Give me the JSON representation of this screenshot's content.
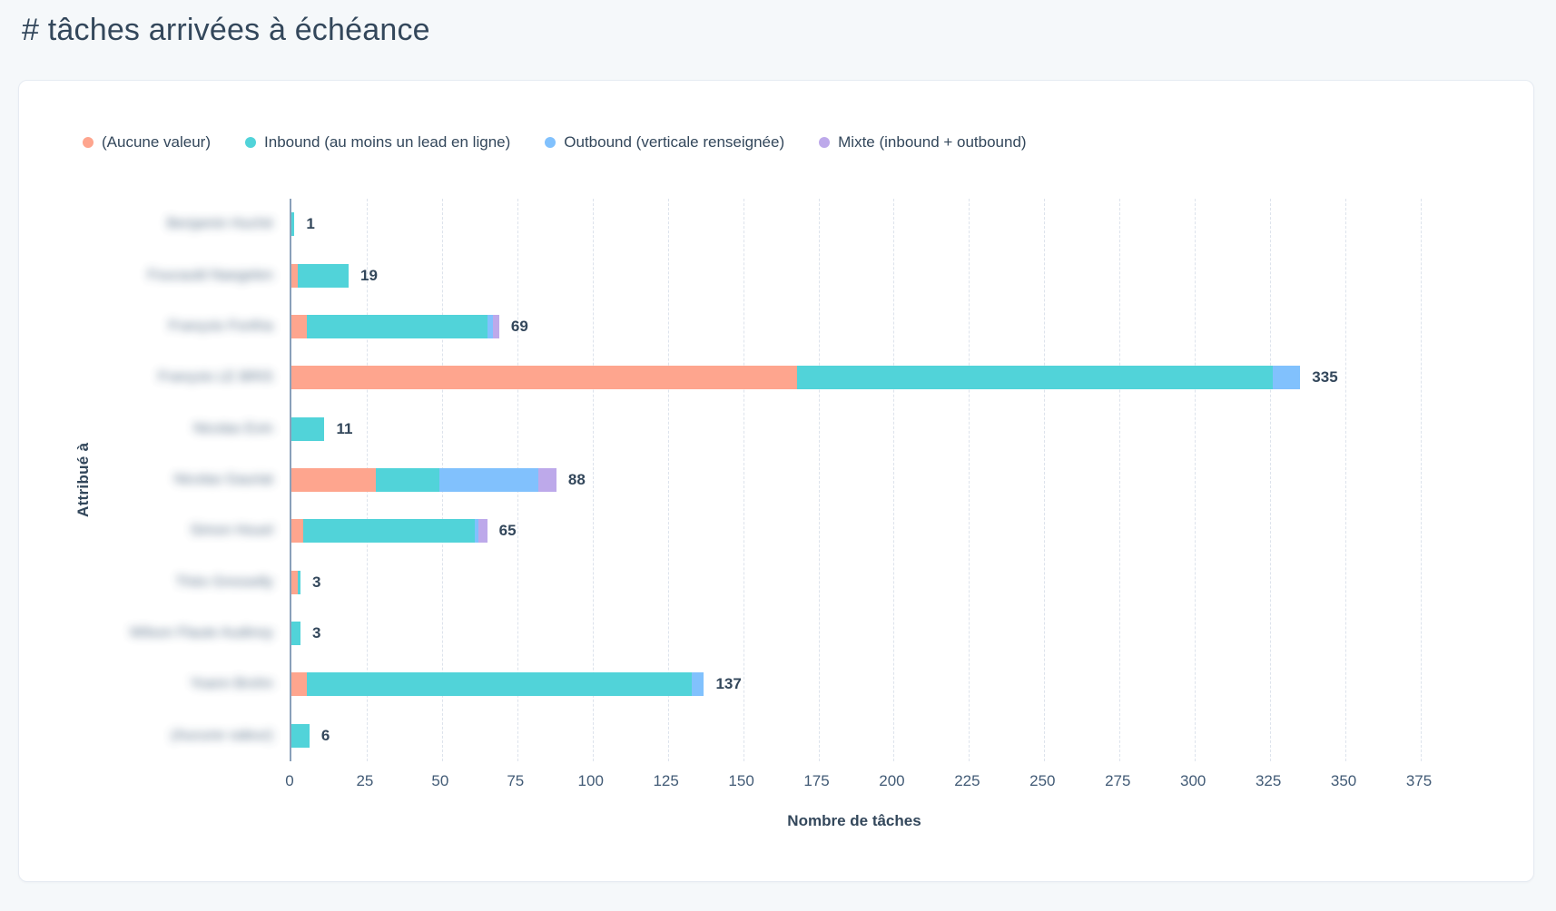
{
  "page": {
    "title": "# tâches arrivées à échéance"
  },
  "colors": {
    "background": "#f5f8fa",
    "card": "#ffffff",
    "text_dark": "#33475b",
    "text_tick": "#425b76",
    "axis_line": "#8aa0ba",
    "gridline": "#dde3ec",
    "series_aucune": "#fea58e",
    "series_inbound": "#51d3d9",
    "series_outbound": "#81c1fd",
    "series_mixte": "#bda9ea"
  },
  "legend": [
    {
      "label": "(Aucune valeur)",
      "color": "#fea58e"
    },
    {
      "label": "Inbound (au moins un lead en ligne)",
      "color": "#51d3d9"
    },
    {
      "label": "Outbound (verticale renseignée)",
      "color": "#81c1fd"
    },
    {
      "label": "Mixte (inbound + outbound)",
      "color": "#bda9ea"
    }
  ],
  "chart_data": {
    "type": "bar",
    "orientation": "horizontal-stacked",
    "title": "# tâches arrivées à échéance",
    "xlabel": "Nombre de tâches",
    "ylabel": "Attribué à",
    "xlim": [
      0,
      375
    ],
    "xticks": [
      0,
      25,
      50,
      75,
      100,
      125,
      150,
      175,
      200,
      225,
      250,
      275,
      300,
      325,
      350,
      375
    ],
    "grid": "vertical-dashed",
    "legend_position": "top-left",
    "categories_blurred": true,
    "categories": [
      "Benjamin Huché",
      "Foucauld Naegelen",
      "François Fonfria",
      "François LE BRIS",
      "Nicolas Evin",
      "Nicolas Gauriat",
      "Simon Houel",
      "Théo Gresselly",
      "Wilson Flaute Audinoy",
      "Yoann Brohn",
      "(Aucune valeur)"
    ],
    "series": [
      {
        "name": "(Aucune valeur)",
        "color": "#fea58e",
        "values": [
          0,
          2,
          5,
          168,
          0,
          28,
          4,
          2,
          0,
          5,
          0
        ]
      },
      {
        "name": "Inbound (au moins un lead en ligne)",
        "color": "#51d3d9",
        "values": [
          1,
          17,
          60,
          158,
          11,
          21,
          57,
          1,
          3,
          128,
          6
        ]
      },
      {
        "name": "Outbound (verticale renseignée)",
        "color": "#81c1fd",
        "values": [
          0,
          0,
          2,
          9,
          0,
          33,
          1,
          0,
          0,
          4,
          0
        ]
      },
      {
        "name": "Mixte (inbound + outbound)",
        "color": "#bda9ea",
        "values": [
          0,
          0,
          2,
          0,
          0,
          6,
          3,
          0,
          0,
          0,
          0
        ]
      }
    ],
    "totals": [
      1,
      19,
      69,
      335,
      11,
      88,
      65,
      3,
      3,
      137,
      6
    ]
  }
}
